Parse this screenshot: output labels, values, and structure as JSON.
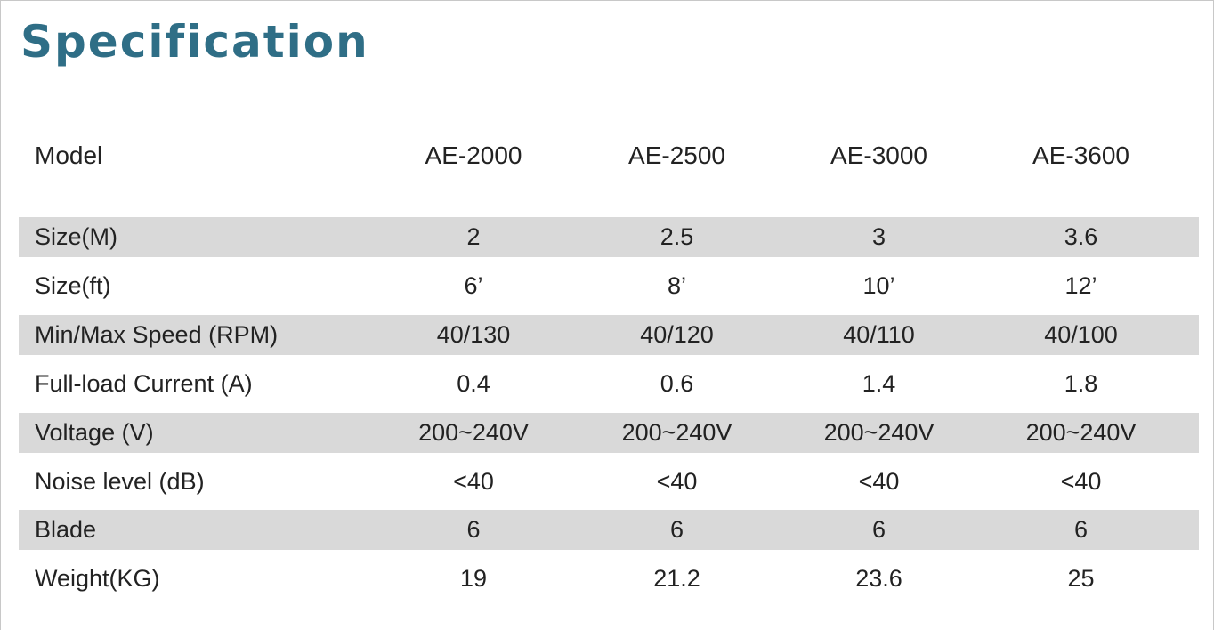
{
  "title": "Specification",
  "table": {
    "header": {
      "label": "Model",
      "models": [
        "AE-2000",
        "AE-2500",
        "AE-3000",
        "AE-3600"
      ]
    },
    "rows": [
      {
        "label": "Size(M)",
        "values": [
          "2",
          "2.5",
          "3",
          "3.6"
        ]
      },
      {
        "label": "Size(ft)",
        "values": [
          "6’",
          "8’",
          "10’",
          "12’"
        ]
      },
      {
        "label": "Min/Max Speed (RPM)",
        "values": [
          "40/130",
          "40/120",
          "40/110",
          "40/100"
        ]
      },
      {
        "label": "Full-load Current (A)",
        "values": [
          "0.4",
          "0.6",
          "1.4",
          "1.8"
        ]
      },
      {
        "label": "Voltage (V)",
        "values": [
          "200~240V",
          "200~240V",
          "200~240V",
          "200~240V"
        ]
      },
      {
        "label": "Noise level (dB)",
        "values": [
          "<40",
          "<40",
          "<40",
          "<40"
        ]
      },
      {
        "label": "Blade",
        "values": [
          "6",
          "6",
          "6",
          "6"
        ]
      },
      {
        "label": "Weight(KG)",
        "values": [
          "19",
          "21.2",
          "23.6",
          "25"
        ]
      }
    ]
  },
  "colors": {
    "title": "#2f6e86",
    "shaded_row": "#d9d9d9",
    "text": "#222222"
  }
}
